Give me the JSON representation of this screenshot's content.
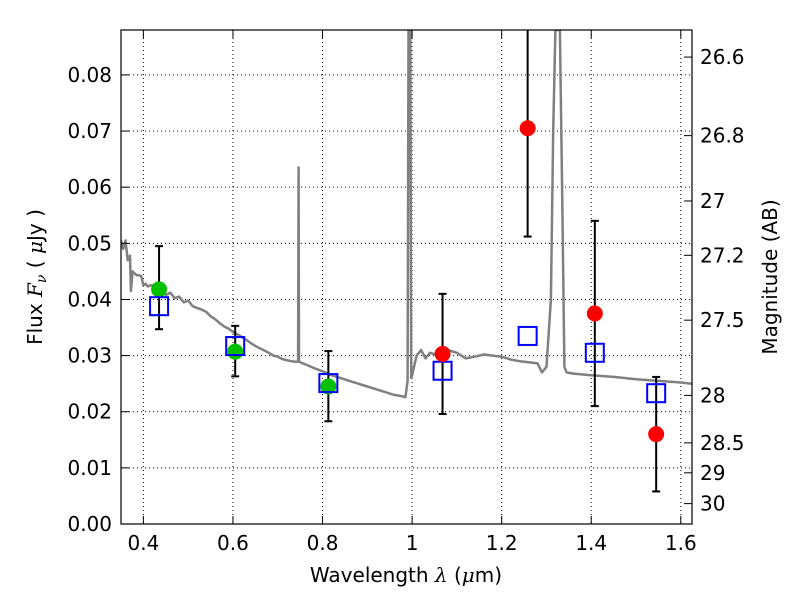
{
  "chart_data": {
    "type": "scatter",
    "x_ticks": [
      "0.4",
      "0.6",
      "0.8",
      "1",
      "1.2",
      "1.4",
      "1.6"
    ],
    "y_ticks": [
      "0.00",
      "0.01",
      "0.02",
      "0.03",
      "0.04",
      "0.05",
      "0.06",
      "0.07",
      "0.08"
    ],
    "xlim": [
      0.35,
      1.625
    ],
    "ylim": [
      0.0,
      0.088
    ],
    "grid": true,
    "xlabel": {
      "pre": "Wavelength  ",
      "sym": "λ",
      "mid": " (",
      "mu": "μ",
      "post": "m)"
    },
    "ylabel": {
      "pre": "Flux  ",
      "sym": "F",
      "sub": "ν",
      "mid": "  ( ",
      "mu": "μ",
      "post": "Jy )"
    },
    "right_axis": {
      "label": "Magnitude (AB)",
      "ticks": [
        {
          "label": "26.6",
          "mag": 26.6
        },
        {
          "label": "26.8",
          "mag": 26.8
        },
        {
          "label": "27",
          "mag": 27.0
        },
        {
          "label": "27.2",
          "mag": 27.2
        },
        {
          "label": "27.5",
          "mag": 27.5
        },
        {
          "label": "28",
          "mag": 28.0
        },
        {
          "label": "28.5",
          "mag": 28.5
        },
        {
          "label": "29",
          "mag": 29.0
        },
        {
          "label": "30",
          "mag": 30.0
        }
      ]
    },
    "sed_model": {
      "color": "#808080",
      "points": [
        [
          0.35,
          0.0505
        ],
        [
          0.355,
          0.049
        ],
        [
          0.36,
          0.0505
        ],
        [
          0.365,
          0.047
        ],
        [
          0.37,
          0.0478
        ],
        [
          0.372,
          0.0415
        ],
        [
          0.376,
          0.045
        ],
        [
          0.38,
          0.0447
        ],
        [
          0.385,
          0.0443
        ],
        [
          0.39,
          0.0443
        ],
        [
          0.395,
          0.0442
        ],
        [
          0.4,
          0.0425
        ],
        [
          0.405,
          0.0428
        ],
        [
          0.41,
          0.0423
        ],
        [
          0.415,
          0.0425
        ],
        [
          0.42,
          0.0425
        ],
        [
          0.425,
          0.0422
        ],
        [
          0.43,
          0.042
        ],
        [
          0.44,
          0.0418
        ],
        [
          0.45,
          0.0408
        ],
        [
          0.46,
          0.0412
        ],
        [
          0.47,
          0.0402
        ],
        [
          0.48,
          0.0405
        ],
        [
          0.49,
          0.0395
        ],
        [
          0.5,
          0.0398
        ],
        [
          0.51,
          0.0388
        ],
        [
          0.52,
          0.0385
        ],
        [
          0.53,
          0.0382
        ],
        [
          0.54,
          0.0378
        ],
        [
          0.55,
          0.037
        ],
        [
          0.56,
          0.0365
        ],
        [
          0.57,
          0.0358
        ],
        [
          0.58,
          0.0352
        ],
        [
          0.59,
          0.0348
        ],
        [
          0.6,
          0.0342
        ],
        [
          0.61,
          0.0338
        ],
        [
          0.62,
          0.0333
        ],
        [
          0.63,
          0.0328
        ],
        [
          0.64,
          0.0322
        ],
        [
          0.65,
          0.0317
        ],
        [
          0.66,
          0.0313
        ],
        [
          0.67,
          0.0309
        ],
        [
          0.68,
          0.0305
        ],
        [
          0.69,
          0.03
        ],
        [
          0.7,
          0.0298
        ],
        [
          0.71,
          0.0294
        ],
        [
          0.72,
          0.0292
        ],
        [
          0.73,
          0.029
        ],
        [
          0.74,
          0.0289
        ],
        [
          0.7455,
          0.0289
        ],
        [
          0.7465,
          0.0635
        ],
        [
          0.7475,
          0.029
        ],
        [
          0.75,
          0.0288
        ],
        [
          0.76,
          0.0285
        ],
        [
          0.78,
          0.0278
        ],
        [
          0.8,
          0.0272
        ],
        [
          0.82,
          0.0265
        ],
        [
          0.84,
          0.026
        ],
        [
          0.86,
          0.0255
        ],
        [
          0.88,
          0.025
        ],
        [
          0.9,
          0.0245
        ],
        [
          0.92,
          0.024
        ],
        [
          0.94,
          0.0235
        ],
        [
          0.96,
          0.023
        ],
        [
          0.975,
          0.0228
        ],
        [
          0.985,
          0.0226
        ],
        [
          0.99,
          0.0255
        ],
        [
          0.992,
          0.088
        ],
        [
          0.996,
          0.088
        ],
        [
          0.998,
          0.026
        ],
        [
          1.0,
          0.0265
        ],
        [
          1.01,
          0.03
        ],
        [
          1.02,
          0.031
        ],
        [
          1.03,
          0.0295
        ],
        [
          1.04,
          0.0305
        ],
        [
          1.06,
          0.03
        ],
        [
          1.08,
          0.031
        ],
        [
          1.1,
          0.0305
        ],
        [
          1.12,
          0.0295
        ],
        [
          1.14,
          0.0298
        ],
        [
          1.16,
          0.0302
        ],
        [
          1.18,
          0.03
        ],
        [
          1.2,
          0.0298
        ],
        [
          1.22,
          0.0293
        ],
        [
          1.24,
          0.029
        ],
        [
          1.26,
          0.0288
        ],
        [
          1.28,
          0.0286
        ],
        [
          1.29,
          0.027
        ],
        [
          1.3,
          0.028
        ],
        [
          1.31,
          0.04
        ],
        [
          1.315,
          0.07
        ],
        [
          1.32,
          0.088
        ],
        [
          1.33,
          0.088
        ],
        [
          1.335,
          0.06
        ],
        [
          1.34,
          0.028
        ],
        [
          1.345,
          0.027
        ],
        [
          1.36,
          0.0268
        ],
        [
          1.4,
          0.0265
        ],
        [
          1.45,
          0.0262
        ],
        [
          1.5,
          0.0258
        ],
        [
          1.55,
          0.0255
        ],
        [
          1.6,
          0.0252
        ],
        [
          1.625,
          0.025
        ]
      ]
    },
    "observed_green": {
      "color": "#00c000",
      "points": [
        [
          0.435,
          0.0418
        ],
        [
          0.605,
          0.0307
        ],
        [
          0.813,
          0.0245
        ]
      ]
    },
    "observed_red": {
      "color": "#ff0000",
      "points": [
        [
          1.068,
          0.0303
        ],
        [
          1.258,
          0.0705
        ],
        [
          1.408,
          0.0375
        ],
        [
          1.545,
          0.016
        ]
      ]
    },
    "model_squares": {
      "color": "#0000ff",
      "points": [
        [
          0.435,
          0.0388
        ],
        [
          0.605,
          0.0317
        ],
        [
          0.813,
          0.0251
        ],
        [
          1.068,
          0.0273
        ],
        [
          1.258,
          0.0335
        ],
        [
          1.408,
          0.0305
        ],
        [
          1.545,
          0.0233
        ]
      ]
    },
    "error_bars": [
      {
        "x": 0.435,
        "low": 0.0347,
        "high": 0.0495
      },
      {
        "x": 0.605,
        "low": 0.0263,
        "high": 0.0353
      },
      {
        "x": 0.813,
        "low": 0.0183,
        "high": 0.0308
      },
      {
        "x": 1.068,
        "low": 0.0196,
        "high": 0.041
      },
      {
        "x": 1.258,
        "low": 0.0512,
        "high": 0.088
      },
      {
        "x": 1.408,
        "low": 0.021,
        "high": 0.054
      },
      {
        "x": 1.545,
        "low": 0.0058,
        "high": 0.0262
      }
    ]
  }
}
